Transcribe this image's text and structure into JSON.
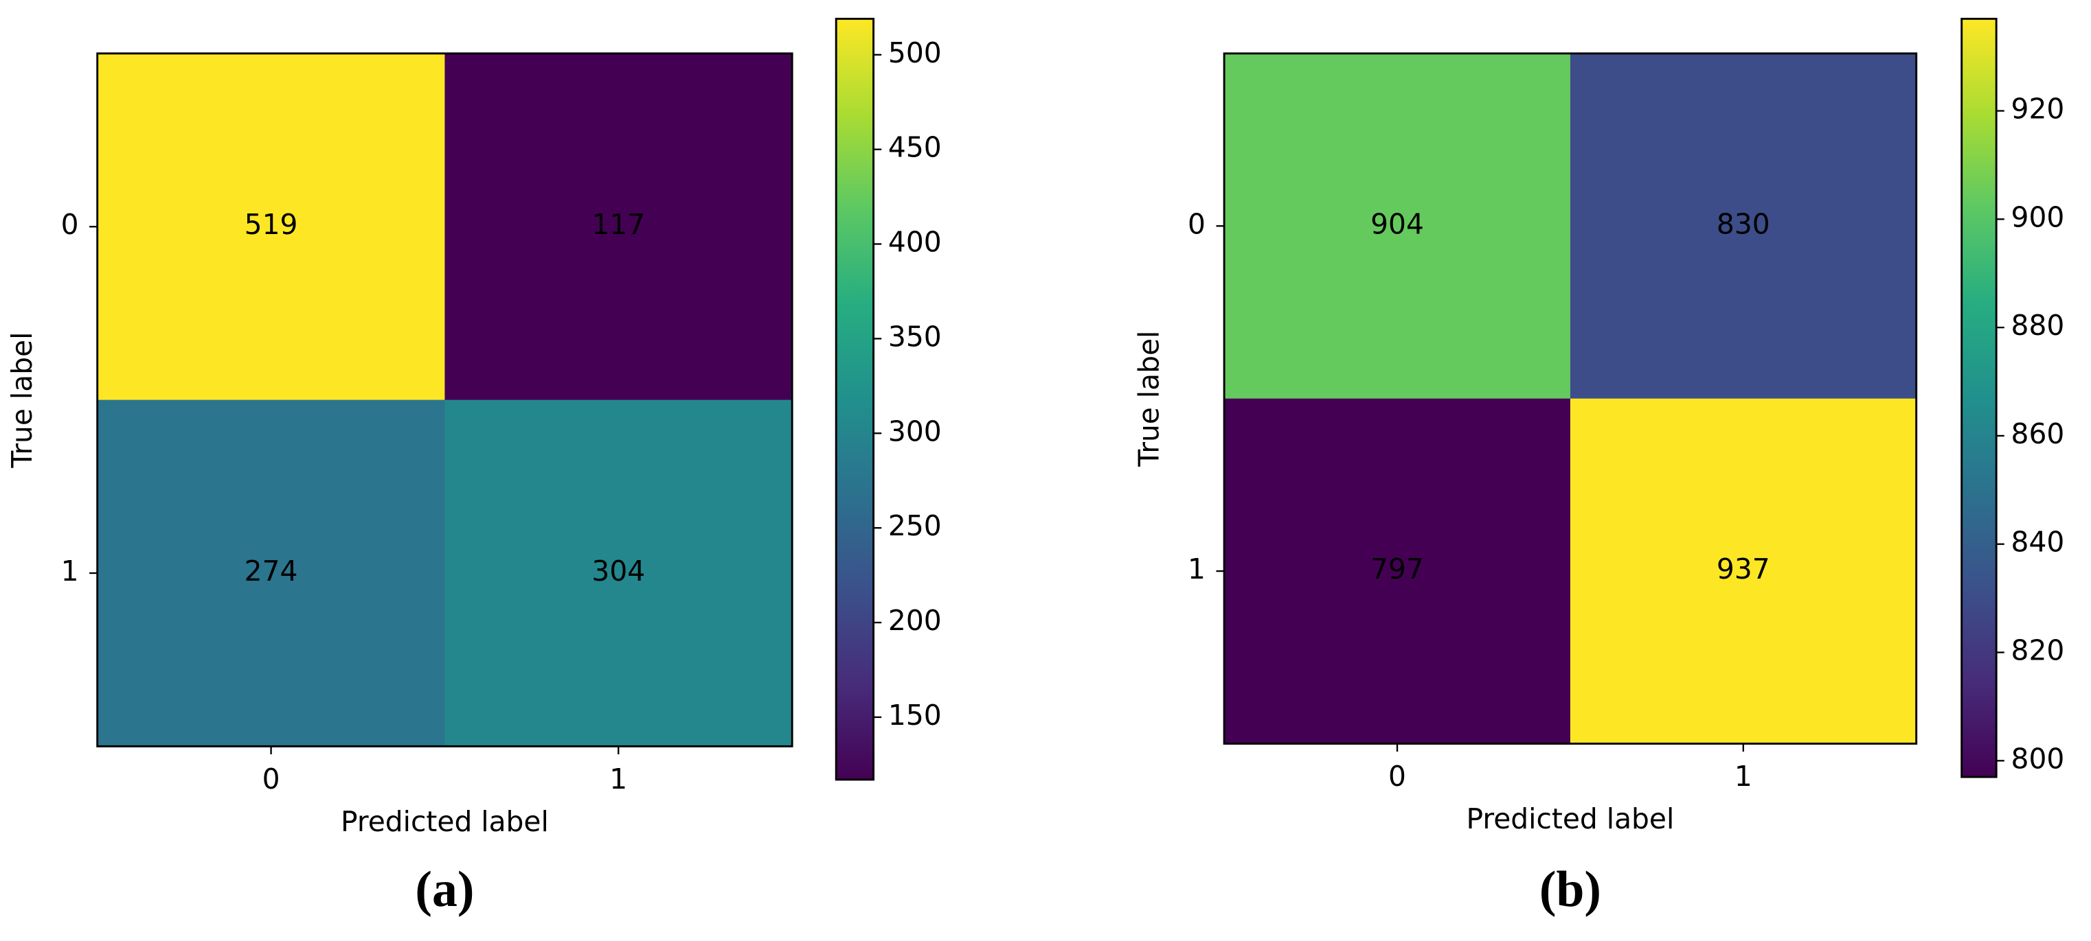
{
  "chart_data": [
    {
      "type": "heatmap",
      "caption": "(a)",
      "x_categories": [
        "0",
        "1"
      ],
      "y_categories": [
        "0",
        "1"
      ],
      "xlabel": "Predicted label",
      "ylabel": "True label",
      "values": [
        [
          519,
          117
        ],
        [
          274,
          304
        ]
      ],
      "colormap": "viridis",
      "colorbar_lim": [
        117,
        519
      ],
      "colorbar_ticks": [
        150,
        200,
        250,
        300,
        350,
        400,
        450,
        500
      ]
    },
    {
      "type": "heatmap",
      "caption": "(b)",
      "x_categories": [
        "0",
        "1"
      ],
      "y_categories": [
        "0",
        "1"
      ],
      "xlabel": "Predicted label",
      "ylabel": "True label",
      "values": [
        [
          904,
          830
        ],
        [
          797,
          937
        ]
      ],
      "colormap": "viridis",
      "colorbar_lim": [
        797,
        937
      ],
      "colorbar_ticks": [
        800,
        820,
        840,
        860,
        880,
        900,
        920
      ]
    }
  ]
}
